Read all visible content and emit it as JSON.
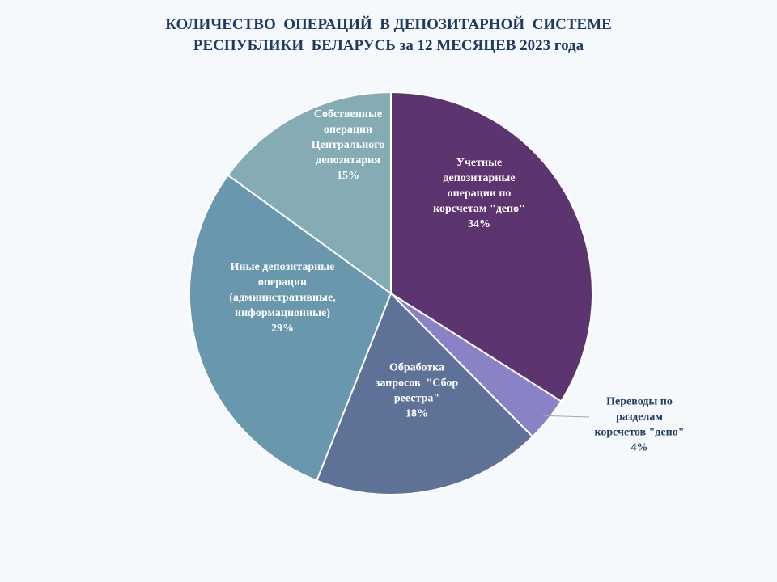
{
  "chart_data": {
    "type": "pie",
    "title_lines": [
      "КОЛИЧЕСТВО  ОПЕРАЦИЙ  В ДЕПОЗИТАРНОЙ  СИСТЕМЕ",
      "РЕСПУБЛИКИ  БЕЛАРУСЬ за 12 МЕСЯЦЕВ 2023 года"
    ],
    "slices": [
      {
        "category": "Учетные депозитарные операции по корсчетам \"депо\"",
        "label_lines": [
          "Учетные",
          "депозитарные",
          "операции по",
          "корсчетам \"депо\""
        ],
        "percent_label": "34%",
        "value": 34,
        "color": "#5b3470",
        "label_color": "#ffffff"
      },
      {
        "category": "Переводы по разделам корсчетов \"депо\"",
        "label_lines": [
          "Переводы по",
          "разделам",
          "корсчетов \"депо\""
        ],
        "percent_label": "4%",
        "value": 3.6,
        "color": "#8a82c6",
        "label_color": "#1f3a63"
      },
      {
        "category": "Обработка запросов \"Сбор реестра\"",
        "label_lines": [
          "Обработка",
          "запросов  \"Сбор",
          "реестра\""
        ],
        "percent_label": "18%",
        "value": 18.4,
        "color": "#5e7298",
        "label_color": "#ffffff"
      },
      {
        "category": "Иные депозитарные операции (административные, информационные)",
        "label_lines": [
          "Иные депозитарные",
          "операции",
          "(административные,",
          "информационные)"
        ],
        "percent_label": "29%",
        "value": 29,
        "color": "#6897ae",
        "label_color": "#ffffff"
      },
      {
        "category": "Собственные операции Центрального депозитария",
        "label_lines": [
          "Собственные",
          "операции",
          "Центрального",
          "депозитария"
        ],
        "percent_label": "15%",
        "value": 15,
        "color": "#85acb5",
        "label_color": "#ffffff"
      }
    ]
  }
}
